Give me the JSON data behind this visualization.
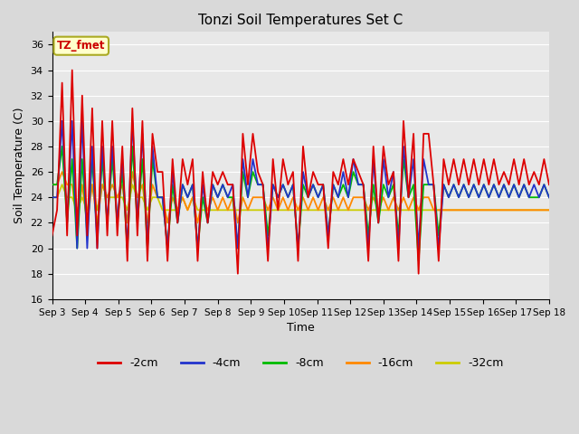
{
  "title": "Tonzi Soil Temperatures Set C",
  "xlabel": "Time",
  "ylabel": "Soil Temperature (C)",
  "ylim": [
    16,
    37
  ],
  "yticks": [
    16,
    18,
    20,
    22,
    24,
    26,
    28,
    30,
    32,
    34,
    36
  ],
  "fig_bg": "#d9d9d9",
  "plot_bg": "#e8e8e8",
  "annotation_text": "TZ_fmet",
  "annotation_fg": "#cc0000",
  "annotation_bg": "#ffffcc",
  "annotation_border": "#aaaa22",
  "legend_labels": [
    "-2cm",
    "-4cm",
    "-8cm",
    "-16cm",
    "-32cm"
  ],
  "line_colors": [
    "#dd0000",
    "#2233cc",
    "#00bb00",
    "#ff8800",
    "#cccc00"
  ],
  "grid_color": "#ffffff",
  "x_tick_labels": [
    "Sep 3",
    "Sep 4",
    "Sep 5",
    "Sep 6",
    "Sep 7",
    "Sep 8",
    "Sep 9",
    "Sep 10",
    "Sep 11",
    "Sep 12",
    "Sep 13",
    "Sep 14",
    "Sep 15",
    "Sep 16",
    "Sep 17",
    "Sep 18"
  ],
  "s2cm": [
    21,
    23,
    33,
    21,
    34,
    21,
    32,
    21,
    31,
    20,
    30,
    21,
    30,
    21,
    28,
    19,
    31,
    21,
    30,
    19,
    29,
    26,
    26,
    19,
    27,
    22,
    27,
    25,
    27,
    19,
    26,
    22,
    26,
    25,
    26,
    25,
    25,
    18,
    29,
    25,
    29,
    26,
    25,
    19,
    27,
    23,
    27,
    25,
    26,
    19,
    28,
    24,
    26,
    25,
    25,
    20,
    26,
    25,
    27,
    25,
    27,
    26,
    25,
    19,
    28,
    22,
    28,
    25,
    26,
    19,
    30,
    24,
    29,
    18,
    29,
    29,
    25,
    19,
    27,
    25,
    27,
    25,
    27,
    25,
    27,
    25,
    27,
    25,
    27,
    25,
    26,
    25,
    27,
    25,
    27,
    25,
    26,
    25,
    27,
    25
  ],
  "s4cm": [
    24,
    24,
    30,
    22,
    30,
    20,
    30,
    20,
    28,
    20,
    28,
    22,
    28,
    22,
    27,
    20,
    30,
    22,
    29,
    20,
    28,
    24,
    24,
    20,
    26,
    22,
    25,
    24,
    25,
    20,
    25,
    22,
    25,
    24,
    25,
    24,
    25,
    20,
    27,
    24,
    27,
    25,
    25,
    20,
    25,
    24,
    25,
    24,
    25,
    20,
    26,
    24,
    25,
    24,
    25,
    21,
    25,
    24,
    26,
    24,
    27,
    25,
    25,
    20,
    27,
    22,
    27,
    24,
    26,
    20,
    28,
    24,
    27,
    20,
    27,
    25,
    25,
    20,
    25,
    24,
    25,
    24,
    25,
    24,
    25,
    24,
    25,
    24,
    25,
    24,
    25,
    24,
    25,
    24,
    25,
    24,
    25,
    24,
    25,
    24
  ],
  "s8cm": [
    25,
    25,
    28,
    22,
    27,
    20,
    27,
    21,
    27,
    21,
    27,
    22,
    27,
    22,
    26,
    20,
    28,
    22,
    27,
    20,
    27,
    24,
    24,
    20,
    25,
    22,
    25,
    24,
    25,
    20,
    24,
    22,
    25,
    24,
    25,
    24,
    24,
    20,
    26,
    24,
    26,
    25,
    25,
    21,
    25,
    24,
    25,
    24,
    25,
    20,
    25,
    24,
    25,
    24,
    25,
    21,
    25,
    24,
    25,
    24,
    26,
    25,
    25,
    21,
    25,
    22,
    25,
    24,
    25,
    21,
    27,
    24,
    25,
    19,
    25,
    25,
    25,
    21,
    25,
    24,
    25,
    24,
    25,
    24,
    25,
    24,
    25,
    24,
    25,
    24,
    25,
    24,
    25,
    24,
    25,
    24,
    24,
    24,
    25,
    24
  ],
  "s16cm": [
    25,
    25,
    26,
    25,
    25,
    22,
    25,
    22,
    25,
    22,
    25,
    24,
    25,
    24,
    25,
    22,
    26,
    24,
    25,
    22,
    25,
    24,
    24,
    22,
    24,
    23,
    24,
    23,
    24,
    22,
    24,
    23,
    24,
    23,
    24,
    23,
    24,
    22,
    24,
    23,
    24,
    24,
    24,
    23,
    24,
    23,
    24,
    23,
    24,
    23,
    24,
    23,
    24,
    23,
    24,
    23,
    24,
    23,
    24,
    23,
    24,
    24,
    24,
    23,
    24,
    23,
    24,
    23,
    24,
    23,
    24,
    23,
    24,
    23,
    24,
    24,
    23,
    23,
    23,
    23,
    23,
    23,
    23,
    23,
    23,
    23,
    23,
    23,
    23,
    23,
    23,
    23,
    23,
    23,
    23,
    23,
    23,
    23,
    23,
    23
  ],
  "s32cm": [
    24,
    24,
    25,
    24,
    24,
    23,
    24,
    23,
    25,
    23,
    25,
    24,
    24,
    24,
    24,
    23,
    25,
    24,
    24,
    23,
    24,
    24,
    23,
    23,
    23,
    23,
    24,
    23,
    24,
    23,
    23,
    23,
    23,
    23,
    23,
    23,
    23,
    23,
    23,
    23,
    23,
    23,
    23,
    23,
    23,
    23,
    23,
    23,
    23,
    23,
    23,
    23,
    23,
    23,
    23,
    23,
    23,
    23,
    23,
    23,
    23,
    23,
    23,
    23,
    23,
    23,
    23,
    23,
    23,
    23,
    23,
    23,
    23,
    23,
    23,
    23,
    23,
    23,
    23,
    23,
    23,
    23,
    23,
    23,
    23,
    23,
    23,
    23,
    23,
    23,
    23,
    23,
    23,
    23,
    23,
    23,
    23,
    23,
    23,
    23
  ]
}
